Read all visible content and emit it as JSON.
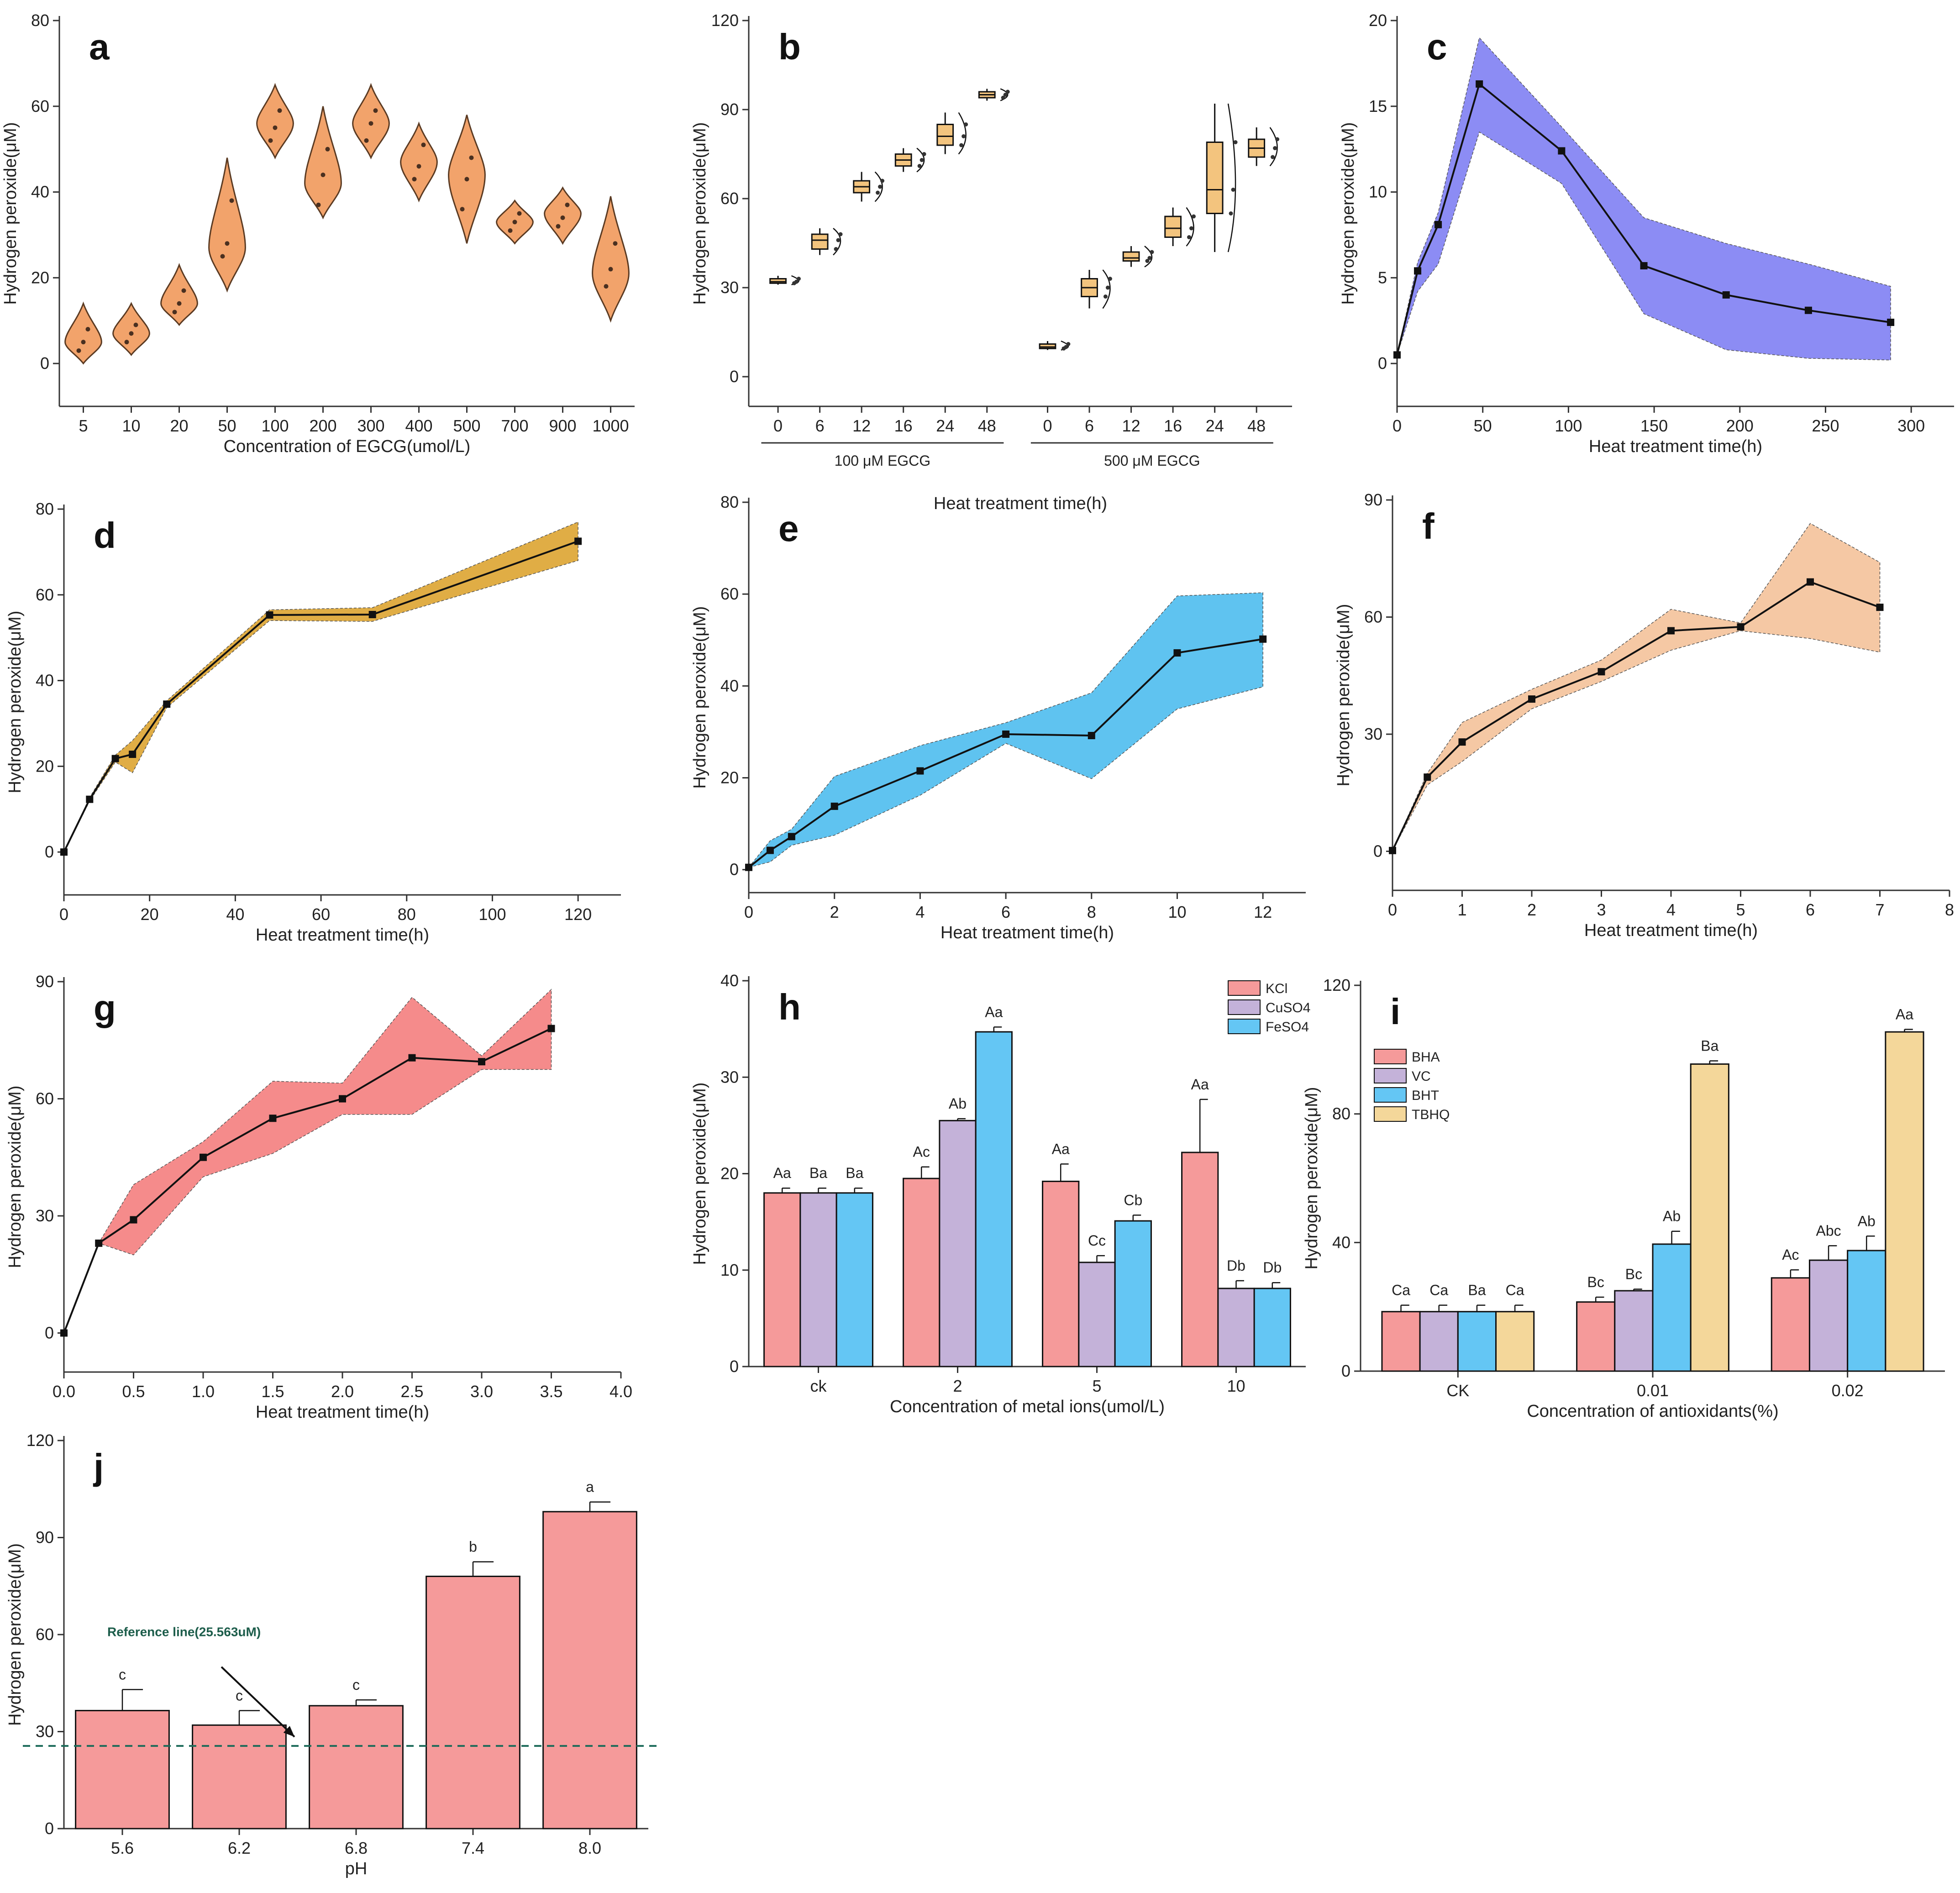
{
  "figure": {
    "background": "#ffffff",
    "axis_color": "#333333"
  },
  "chart_data": [
    {
      "id": "a",
      "type": "violin",
      "panel_label": "a",
      "xlabel": "Concentration of EGCG(umol/L)",
      "ylabel": "Hydrogen peroxide(μM)",
      "ylim": [
        -10,
        80
      ],
      "yticks": [
        0,
        20,
        40,
        60,
        80
      ],
      "categories": [
        "5",
        "10",
        "20",
        "50",
        "100",
        "200",
        "300",
        "400",
        "500",
        "700",
        "900",
        "1000"
      ],
      "color": "#f2a36b",
      "violins": [
        {
          "min": 0,
          "max": 14,
          "center": 5,
          "points": [
            3,
            5,
            8
          ]
        },
        {
          "min": 2,
          "max": 14,
          "center": 7,
          "points": [
            5,
            7,
            9
          ]
        },
        {
          "min": 9,
          "max": 23,
          "center": 14,
          "points": [
            12,
            14,
            17
          ]
        },
        {
          "min": 17,
          "max": 48,
          "center": 27,
          "points": [
            25,
            28,
            38
          ]
        },
        {
          "min": 48,
          "max": 65,
          "center": 56,
          "points": [
            52,
            55,
            59
          ]
        },
        {
          "min": 34,
          "max": 60,
          "center": 42,
          "points": [
            37,
            44,
            50
          ]
        },
        {
          "min": 48,
          "max": 65,
          "center": 56,
          "points": [
            52,
            56,
            59
          ]
        },
        {
          "min": 38,
          "max": 56,
          "center": 47,
          "points": [
            43,
            46,
            51
          ]
        },
        {
          "min": 28,
          "max": 58,
          "center": 44,
          "points": [
            36,
            43,
            48
          ]
        },
        {
          "min": 28,
          "max": 38,
          "center": 33,
          "points": [
            31,
            33,
            35
          ]
        },
        {
          "min": 28,
          "max": 41,
          "center": 35,
          "points": [
            32,
            34,
            37
          ]
        },
        {
          "min": 10,
          "max": 39,
          "center": 21,
          "points": [
            18,
            22,
            28
          ]
        }
      ]
    },
    {
      "id": "b",
      "type": "box",
      "panel_label": "b",
      "xlabel": "Heat treatment time(h)",
      "ylabel": "Hydrogen peroxide(μM)",
      "ylim": [
        -10,
        120
      ],
      "yticks": [
        0,
        30,
        60,
        90,
        120
      ],
      "group_labels": [
        "100 μM EGCG",
        "500 μM EGCG"
      ],
      "categories": [
        "0",
        "6",
        "12",
        "16",
        "24",
        "48",
        "0",
        "6",
        "12",
        "16",
        "24",
        "48"
      ],
      "color": "#f3c47e",
      "boxes": [
        {
          "q1": 31.5,
          "median": 32,
          "q3": 33,
          "min": 31,
          "max": 34
        },
        {
          "q1": 43,
          "median": 46,
          "q3": 48,
          "min": 41,
          "max": 50
        },
        {
          "q1": 62,
          "median": 64,
          "q3": 66,
          "min": 59,
          "max": 69
        },
        {
          "q1": 71,
          "median": 73,
          "q3": 75,
          "min": 69,
          "max": 77
        },
        {
          "q1": 78,
          "median": 81,
          "q3": 85,
          "min": 75,
          "max": 89
        },
        {
          "q1": 94,
          "median": 95,
          "q3": 96,
          "min": 93,
          "max": 97
        },
        {
          "q1": 9.5,
          "median": 10,
          "q3": 11,
          "min": 9,
          "max": 12
        },
        {
          "q1": 27,
          "median": 30,
          "q3": 33,
          "min": 23,
          "max": 36
        },
        {
          "q1": 39,
          "median": 40,
          "q3": 42,
          "min": 37,
          "max": 44
        },
        {
          "q1": 47,
          "median": 50,
          "q3": 54,
          "min": 44,
          "max": 57
        },
        {
          "q1": 55,
          "median": 63,
          "q3": 79,
          "min": 42,
          "max": 92
        },
        {
          "q1": 74,
          "median": 77,
          "q3": 80,
          "min": 71,
          "max": 84
        }
      ]
    },
    {
      "id": "c",
      "type": "line",
      "panel_label": "c",
      "xlabel": "Heat treatment time(h)",
      "ylabel": "Hydrogen peroxide(μM)",
      "xlim": [
        0,
        325
      ],
      "xticks": [
        0,
        50,
        100,
        150,
        200,
        250,
        300
      ],
      "ylim": [
        -2.5,
        20
      ],
      "yticks": [
        0,
        5,
        10,
        15,
        20
      ],
      "color": "#8c8cf4",
      "x": [
        0,
        12,
        24,
        48,
        96,
        144,
        192,
        240,
        288
      ],
      "y": [
        0.5,
        5.4,
        8.1,
        16.3,
        12.4,
        5.7,
        4.0,
        3.1,
        2.4
      ],
      "upper": [
        0.5,
        5.9,
        8.8,
        19.0,
        13.8,
        8.5,
        7.0,
        5.8,
        4.5
      ],
      "lower": [
        0.5,
        4.2,
        5.8,
        13.5,
        10.5,
        2.9,
        0.8,
        0.3,
        0.2
      ]
    },
    {
      "id": "d",
      "type": "line",
      "panel_label": "d",
      "xlabel": "Heat treatment time(h)",
      "ylabel": "Hydrogen peroxide(μM)",
      "xlim": [
        0,
        130
      ],
      "xticks": [
        0,
        20,
        40,
        60,
        80,
        100,
        120
      ],
      "ylim": [
        -10,
        80
      ],
      "yticks": [
        0,
        20,
        40,
        60,
        80
      ],
      "color": "#e0ad45",
      "x": [
        0,
        6,
        12,
        16,
        24,
        48,
        72,
        120
      ],
      "y": [
        0,
        12.3,
        21.8,
        22.8,
        34.5,
        55.3,
        55.4,
        72.5
      ],
      "upper": [
        0,
        12.7,
        22.6,
        26.0,
        35.3,
        56.5,
        57.0,
        77.0
      ],
      "lower": [
        0,
        11.9,
        21.0,
        18.5,
        33.7,
        54.0,
        53.8,
        68.0
      ]
    },
    {
      "id": "e",
      "type": "line",
      "panel_label": "e",
      "xlabel": "Heat treatment time(h)",
      "ylabel": "Hydrogen peroxide(μM)",
      "xlim": [
        0,
        13
      ],
      "xticks": [
        0,
        2,
        4,
        6,
        8,
        10,
        12
      ],
      "ylim": [
        -5,
        80
      ],
      "yticks": [
        0,
        20,
        40,
        60,
        80
      ],
      "color": "#5fc3f0",
      "x": [
        0,
        0.5,
        1,
        2,
        4,
        6,
        8,
        10,
        12
      ],
      "y": [
        0.5,
        4.2,
        7.2,
        13.8,
        21.5,
        29.5,
        29.2,
        47.2,
        50.2
      ],
      "upper": [
        0.5,
        6.3,
        8.8,
        20.3,
        27.0,
        32.0,
        38.5,
        59.6,
        60.3
      ],
      "lower": [
        0.5,
        1.7,
        5.3,
        7.5,
        16.2,
        27.5,
        19.8,
        35.0,
        39.8
      ]
    },
    {
      "id": "f",
      "type": "line",
      "panel_label": "f",
      "xlabel": "Heat treatment time(h)",
      "ylabel": "Hydrogen peroxide(μM)",
      "xlim": [
        0,
        8
      ],
      "xticks": [
        0,
        1,
        2,
        3,
        4,
        5,
        6,
        7,
        8
      ],
      "ylim": [
        -10,
        90
      ],
      "yticks": [
        0,
        30,
        60,
        90
      ],
      "color": "#f5c8a4",
      "x": [
        0,
        0.5,
        1,
        2,
        3,
        4,
        5,
        6,
        7
      ],
      "y": [
        0.2,
        19.0,
        28.0,
        39.0,
        46.0,
        56.5,
        57.5,
        69.0,
        62.5
      ],
      "upper": [
        0.2,
        20.0,
        33.0,
        41.5,
        49.0,
        62.0,
        58.5,
        84.0,
        74.0
      ],
      "lower": [
        0.2,
        17.0,
        23.0,
        36.5,
        43.5,
        51.5,
        56.5,
        54.5,
        51.0
      ]
    },
    {
      "id": "g",
      "type": "line",
      "panel_label": "g",
      "xlabel": "Heat treatment time(h)",
      "ylabel": "Hydrogen peroxide(μM)",
      "xlim": [
        0,
        4
      ],
      "xticks": [
        0.0,
        0.5,
        1.0,
        1.5,
        2.0,
        2.5,
        3.0,
        3.5,
        4.0
      ],
      "ylim": [
        -10,
        90
      ],
      "yticks": [
        0,
        30,
        60,
        90
      ],
      "color": "#f58b8b",
      "x": [
        0,
        0.25,
        0.5,
        1,
        1.5,
        2,
        2.5,
        3,
        3.5
      ],
      "y": [
        0,
        23.0,
        29.0,
        45.0,
        55.0,
        60.0,
        70.5,
        69.5,
        78.0
      ],
      "upper": [
        0,
        23.0,
        38.0,
        49.0,
        64.5,
        64.0,
        86.0,
        71.0,
        88.0
      ],
      "lower": [
        0,
        23.0,
        20.0,
        40.0,
        46.0,
        56.0,
        56.0,
        67.5,
        67.5
      ]
    },
    {
      "id": "h",
      "type": "bar",
      "panel_label": "h",
      "xlabel": "Concentration of metal ions(umol/L)",
      "ylabel": "Hydrogen peroxide(μM)",
      "ylim": [
        0,
        40
      ],
      "yticks": [
        0,
        10,
        20,
        30,
        40
      ],
      "categories": [
        "ck",
        "2",
        "5",
        "10"
      ],
      "legend_position": "top-right",
      "series": [
        {
          "name": "KCl",
          "color": "#f59a9a",
          "values": [
            18.0,
            19.5,
            19.2,
            22.2
          ],
          "errors": [
            0.5,
            1.2,
            1.8,
            5.5
          ],
          "labels": [
            "Aa",
            "Ac",
            "Aa",
            "Aa"
          ]
        },
        {
          "name": "CuSO4",
          "color": "#c4b2d9",
          "values": [
            18.0,
            25.5,
            10.8,
            8.1
          ],
          "errors": [
            0.5,
            0.2,
            0.7,
            0.8
          ],
          "labels": [
            "Ba",
            "Ab",
            "Cc",
            "Db"
          ]
        },
        {
          "name": "FeSO4",
          "color": "#64c6f4",
          "values": [
            18.0,
            34.7,
            15.1,
            8.1
          ],
          "errors": [
            0.5,
            0.5,
            0.6,
            0.6
          ],
          "labels": [
            "Ba",
            "Aa",
            "Cb",
            "Db"
          ]
        }
      ]
    },
    {
      "id": "i",
      "type": "bar",
      "panel_label": "i",
      "xlabel": "Concentration of antioxidants(%)",
      "ylabel": "Hydrogen peroxide(μM)",
      "ylim": [
        0,
        120
      ],
      "yticks": [
        0,
        40,
        80,
        120
      ],
      "categories": [
        "CK",
        "0.01",
        "0.02"
      ],
      "legend_position": "top-left",
      "series": [
        {
          "name": "BHA",
          "color": "#f59a9a",
          "values": [
            18.5,
            21.5,
            29.0
          ],
          "errors": [
            2.0,
            1.5,
            2.5
          ],
          "labels": [
            "Ca",
            "Bc",
            "Ac"
          ]
        },
        {
          "name": "VC",
          "color": "#c4b2d9",
          "values": [
            18.5,
            25.0,
            34.5
          ],
          "errors": [
            2.0,
            0.5,
            4.5
          ],
          "labels": [
            "Ca",
            "Bc",
            "Abc"
          ]
        },
        {
          "name": "BHT",
          "color": "#64c6f4",
          "values": [
            18.5,
            39.5,
            37.5
          ],
          "errors": [
            2.0,
            4.0,
            4.5
          ],
          "labels": [
            "Ba",
            "Ab",
            "Ab"
          ]
        },
        {
          "name": "TBHQ",
          "color": "#f4d79a",
          "values": [
            18.5,
            95.5,
            105.5
          ],
          "errors": [
            2.0,
            1.0,
            0.8
          ],
          "labels": [
            "Ca",
            "Ba",
            "Aa"
          ]
        }
      ]
    },
    {
      "id": "j",
      "type": "bar",
      "panel_label": "j",
      "xlabel": "pH",
      "ylabel": "Hydrogen peroxide(μM)",
      "ylim": [
        0,
        120
      ],
      "yticks": [
        0,
        30,
        60,
        90,
        120
      ],
      "categories": [
        "5.6",
        "6.2",
        "6.8",
        "7.4",
        "8.0"
      ],
      "series": [
        {
          "name": "pH",
          "color": "#f59a9a",
          "values": [
            36.5,
            32.0,
            38.0,
            78.0,
            98.0
          ],
          "errors": [
            6.5,
            4.5,
            1.8,
            4.5,
            3.0
          ],
          "labels": [
            "c",
            "c",
            "c",
            "b",
            "a"
          ]
        }
      ],
      "reference_line": {
        "value": 25.563,
        "label": "Reference line(25.563uM)",
        "color": "#1d6b5a"
      }
    }
  ]
}
